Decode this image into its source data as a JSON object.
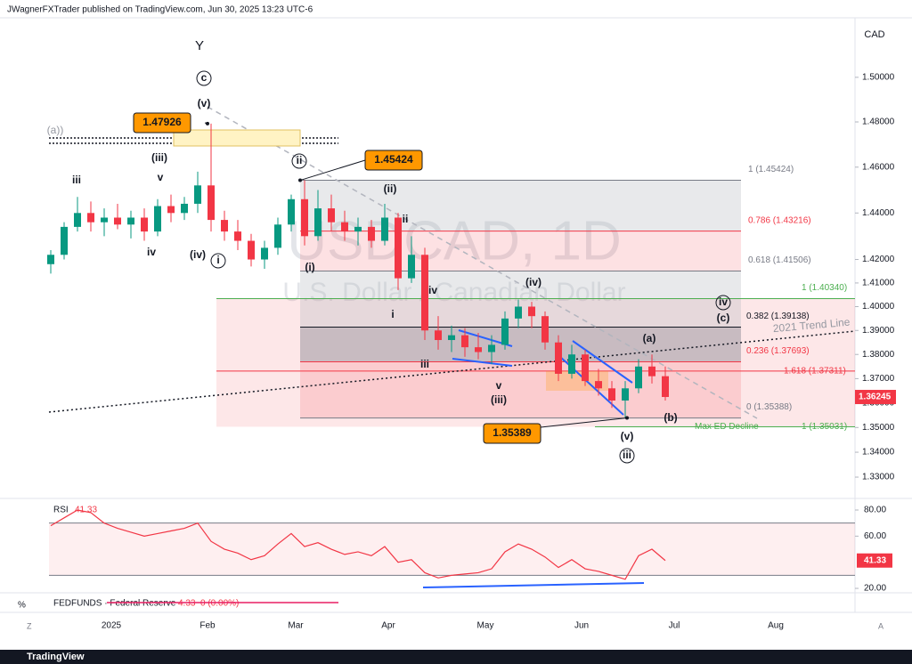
{
  "header": {
    "publisher": "JWagnerFXTrader published on TradingView.com, Jun 30, 2025 13:23 UTC-6",
    "currency": "CAD",
    "brand": "TradingView"
  },
  "chart_data": {
    "type": "candlestick",
    "symbol": "USDCAD, 1D",
    "description": "U.S. Dollar / Canadian Dollar",
    "log_scale": true,
    "up_color": "#089981",
    "down_color": "#f23645",
    "ylim": [
      1.3222,
      1.5271
    ],
    "yticks": [
      {
        "value": 1.5,
        "label": "1.50000"
      },
      {
        "value": 1.48,
        "label": "1.48000"
      },
      {
        "value": 1.46,
        "label": "1.46000"
      },
      {
        "value": 1.44,
        "label": "1.44000"
      },
      {
        "value": 1.42,
        "label": "1.42000"
      },
      {
        "value": 1.41,
        "label": "1.41000"
      },
      {
        "value": 1.4,
        "label": "1.40000"
      },
      {
        "value": 1.39,
        "label": "1.39000"
      },
      {
        "value": 1.38,
        "label": "1.38000"
      },
      {
        "value": 1.37,
        "label": "1.37000"
      },
      {
        "value": 1.36,
        "label": "1.36000"
      },
      {
        "value": 1.35,
        "label": "1.35000"
      },
      {
        "value": 1.34,
        "label": "1.34000"
      },
      {
        "value": 1.33,
        "label": "1.33000"
      }
    ],
    "time_labels": [
      "2025",
      "Feb",
      "Mar",
      "Apr",
      "May",
      "Jun",
      "Jul",
      "Aug"
    ],
    "open": [
      1.418,
      1.422,
      1.434,
      1.44,
      1.436,
      1.438,
      1.435,
      1.438,
      1.432,
      1.443,
      1.44,
      1.444,
      1.452,
      1.437,
      1.432,
      1.428,
      1.42,
      1.425,
      1.435,
      1.446,
      1.43,
      1.442,
      1.436,
      1.432,
      1.434,
      1.428,
      1.438,
      1.412,
      1.422,
      1.39,
      1.386,
      1.388,
      1.383,
      1.381,
      1.384,
      1.395,
      1.4,
      1.396,
      1.385,
      1.372,
      1.38,
      1.369,
      1.366,
      1.361,
      1.366,
      1.375,
      1.371
    ],
    "high": [
      1.424,
      1.436,
      1.447,
      1.445,
      1.442,
      1.444,
      1.441,
      1.442,
      1.446,
      1.448,
      1.447,
      1.458,
      1.47926,
      1.441,
      1.437,
      1.431,
      1.428,
      1.438,
      1.448,
      1.45424,
      1.45,
      1.448,
      1.441,
      1.438,
      1.437,
      1.444,
      1.44,
      1.43,
      1.425,
      1.396,
      1.392,
      1.391,
      1.389,
      1.388,
      1.398,
      1.403,
      1.402,
      1.398,
      1.388,
      1.384,
      1.382,
      1.374,
      1.369,
      1.369,
      1.378,
      1.38,
      1.375
    ],
    "low": [
      1.414,
      1.42,
      1.432,
      1.432,
      1.43,
      1.433,
      1.429,
      1.428,
      1.43,
      1.436,
      1.437,
      1.44,
      1.432,
      1.428,
      1.424,
      1.417,
      1.416,
      1.422,
      1.432,
      1.426,
      1.428,
      1.432,
      1.428,
      1.426,
      1.425,
      1.426,
      1.407,
      1.41,
      1.386,
      1.382,
      1.381,
      1.379,
      1.378,
      1.376,
      1.382,
      1.391,
      1.391,
      1.382,
      1.369,
      1.37,
      1.367,
      1.363,
      1.358,
      1.35389,
      1.364,
      1.368,
      1.361
    ],
    "close": [
      1.422,
      1.434,
      1.44,
      1.436,
      1.438,
      1.435,
      1.438,
      1.432,
      1.443,
      1.44,
      1.444,
      1.452,
      1.437,
      1.432,
      1.428,
      1.42,
      1.425,
      1.435,
      1.446,
      1.43,
      1.442,
      1.436,
      1.432,
      1.434,
      1.428,
      1.438,
      1.412,
      1.422,
      1.39,
      1.386,
      1.388,
      1.383,
      1.381,
      1.384,
      1.395,
      1.4,
      1.396,
      1.385,
      1.372,
      1.38,
      1.369,
      1.366,
      1.361,
      1.366,
      1.375,
      1.371,
      1.36245
    ],
    "callouts": [
      1.47926,
      1.45424,
      1.35389
    ],
    "fib_levels": [
      {
        "value": 1.45424,
        "label": "1 (1.45424)"
      },
      {
        "value": 1.43216,
        "label": "0.786 (1.43216)"
      },
      {
        "value": 1.41506,
        "label": "0.618 (1.41506)"
      },
      {
        "value": 1.4034,
        "label": "1 (1.40340)"
      },
      {
        "value": 1.39138,
        "label": "0.382 (1.39138)"
      },
      {
        "value": 1.37693,
        "label": "0.236 (1.37693)"
      },
      {
        "value": 1.37311,
        "label": "1.618 (1.37311)"
      },
      {
        "value": 1.35388,
        "label": "0 (1.35388)"
      },
      {
        "value": 1.35031,
        "label": "1 (1.35031)"
      }
    ],
    "annotations": [
      "Max ED Decline",
      "2021 Trend Line"
    ],
    "wave_labels": [
      "Y",
      "c",
      "(v)",
      "(iii)",
      "v",
      "iii",
      "iv",
      "(iv)",
      "i",
      "ii",
      "(ii)",
      "ii",
      "(i)",
      "iv",
      "i",
      "(iv)",
      "iii",
      "v",
      "(iii)",
      "(v)",
      "iii",
      "(a)",
      "(b)",
      "iv",
      "(c)",
      "(a))"
    ],
    "rsi": {
      "name": "RSI",
      "color": "#f23645",
      "ylim": [
        17.3,
        87.5
      ],
      "band": [
        30,
        70
      ],
      "yticks": [
        {
          "value": 80,
          "label": "80.00"
        },
        {
          "value": 60,
          "label": "60.00"
        },
        {
          "value": 20,
          "label": "20.00"
        }
      ],
      "values": [
        68,
        74,
        80,
        78,
        70,
        66,
        63,
        60,
        62,
        64,
        66,
        70,
        56,
        50,
        47,
        42,
        45,
        54,
        62,
        52,
        55,
        50,
        46,
        48,
        45,
        52,
        40,
        42,
        32,
        28,
        30,
        31,
        32,
        35,
        48,
        54,
        50,
        44,
        36,
        42,
        35,
        33,
        30,
        27,
        45,
        50,
        41.33
      ]
    },
    "fedfunds": {
      "name": "FEDFUNDS · Federal Reserve",
      "value": 4.33,
      "change": "0 (0.00%)",
      "unit": "%"
    }
  }
}
